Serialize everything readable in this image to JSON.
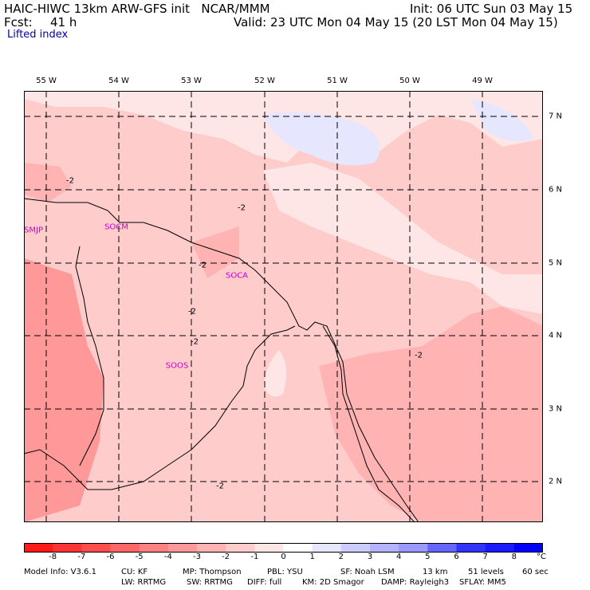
{
  "header": {
    "line1_left": "HAIC-HIWC 13km ARW-GFS init   NCAR/MMM",
    "line1_right": "Init: 06 UTC Sun 03 May 15",
    "fcst_label": "Fcst:",
    "fcst_value": "41 h",
    "valid": "Valid: 23 UTC Mon 04 May 15 (20 LST Mon 04 May 15)",
    "field": "Lifted index"
  },
  "map": {
    "longitudes": [
      "55 W",
      "54 W",
      "53 W",
      "52 W",
      "51 W",
      "50 W",
      "49 W"
    ],
    "latitudes": [
      "7 N",
      "6 N",
      "5 N",
      "4 N",
      "3 N",
      "2 N"
    ],
    "stations": [
      "SMJP",
      "SOCM",
      "SOCA",
      "SOOS"
    ],
    "contour_labels": [
      "-2",
      "-2",
      "-2",
      "-2",
      "-2",
      "-2",
      "-2"
    ],
    "colors": {
      "land_outline": "#000000",
      "grid": "#000000",
      "station": "#cc00cc"
    }
  },
  "colorbar": {
    "unit": "°C",
    "ticks": [
      "-8",
      "-7",
      "-6",
      "-5",
      "-4",
      "-3",
      "-2",
      "-1",
      "0",
      "1",
      "2",
      "3",
      "4",
      "5",
      "6",
      "7",
      "8"
    ],
    "colors": [
      "#ff1a1a",
      "#ff3333",
      "#ff4d4d",
      "#ff6666",
      "#ff8080",
      "#ff9999",
      "#ffb3b3",
      "#ffcccc",
      "#ffe6e6",
      "#ffffff",
      "#e6e6ff",
      "#ccccff",
      "#b3b3ff",
      "#9999ff",
      "#6666ff",
      "#3333ff",
      "#1a1aff",
      "#0000ff"
    ]
  },
  "footer": {
    "line1": [
      "Model Info: V3.6.1",
      "CU: KF",
      "MP: Thompson",
      "PBL: YSU",
      "SF: Noah LSM",
      "13 km",
      "51 levels",
      "60 sec"
    ],
    "line2": [
      "LW: RRTMG",
      "SW: RRTMG",
      "DIFF: full",
      "KM: 2D Smagor",
      "DAMP: Rayleigh3",
      "SFLAY: MM5"
    ]
  }
}
